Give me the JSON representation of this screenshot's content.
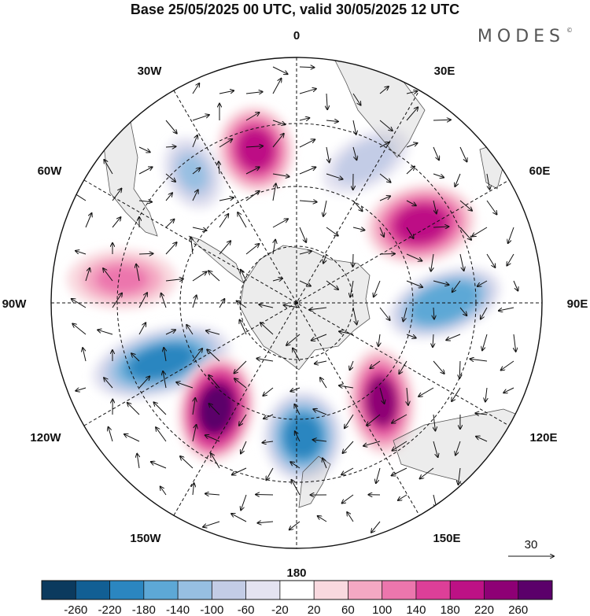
{
  "title": "Base 25/05/2025 00 UTC, valid 30/05/2025 12 UTC",
  "brand": "MODES",
  "brand_mark": "©",
  "longitude_labels": {
    "lon_0": "0",
    "lon_30e": "30E",
    "lon_60e": "60E",
    "lon_90e": "90E",
    "lon_120e": "120E",
    "lon_150e": "150E",
    "lon_180": "180",
    "lon_150w": "150W",
    "lon_120w": "120W",
    "lon_90w": "90W",
    "lon_60w": "60W",
    "lon_30w": "30W"
  },
  "wind_reference_value": "30",
  "colorbar": {
    "ticks": [
      "-260",
      "-220",
      "-180",
      "-140",
      "-100",
      "-60",
      "-20",
      "20",
      "60",
      "100",
      "140",
      "180",
      "220",
      "260"
    ],
    "colors": [
      "#0b3a5e",
      "#125f94",
      "#2b86c0",
      "#5da8d6",
      "#97bfe2",
      "#c3cce6",
      "#e4e3f1",
      "#ffffff",
      "#f9d9df",
      "#f4a8c3",
      "#ec76ad",
      "#dd3f98",
      "#bd1185",
      "#8e0075",
      "#5b006a"
    ]
  },
  "chart_data": {
    "type": "heatmap",
    "projection": "south polar stereographic",
    "field": "anomaly with wind vectors",
    "color_levels": [
      -260,
      -220,
      -180,
      -140,
      -100,
      -60,
      -20,
      20,
      60,
      100,
      140,
      180,
      220,
      260
    ],
    "wind_reference": 30,
    "anomaly_centers": [
      {
        "sign": "positive",
        "near": "0 / 20W",
        "value": 180
      },
      {
        "sign": "negative",
        "near": "40W",
        "value": -120
      },
      {
        "sign": "negative",
        "near": "20E",
        "value": -100
      },
      {
        "sign": "positive",
        "near": "50E",
        "value": 180
      },
      {
        "sign": "negative",
        "near": "85E",
        "value": -180
      },
      {
        "sign": "positive",
        "near": "80W",
        "value": 100
      },
      {
        "sign": "negative",
        "near": "110W",
        "value": -220
      },
      {
        "sign": "positive",
        "near": "140W",
        "value": 260
      },
      {
        "sign": "negative",
        "near": "180",
        "value": -200
      },
      {
        "sign": "positive",
        "near": "140E",
        "value": 220
      }
    ]
  }
}
